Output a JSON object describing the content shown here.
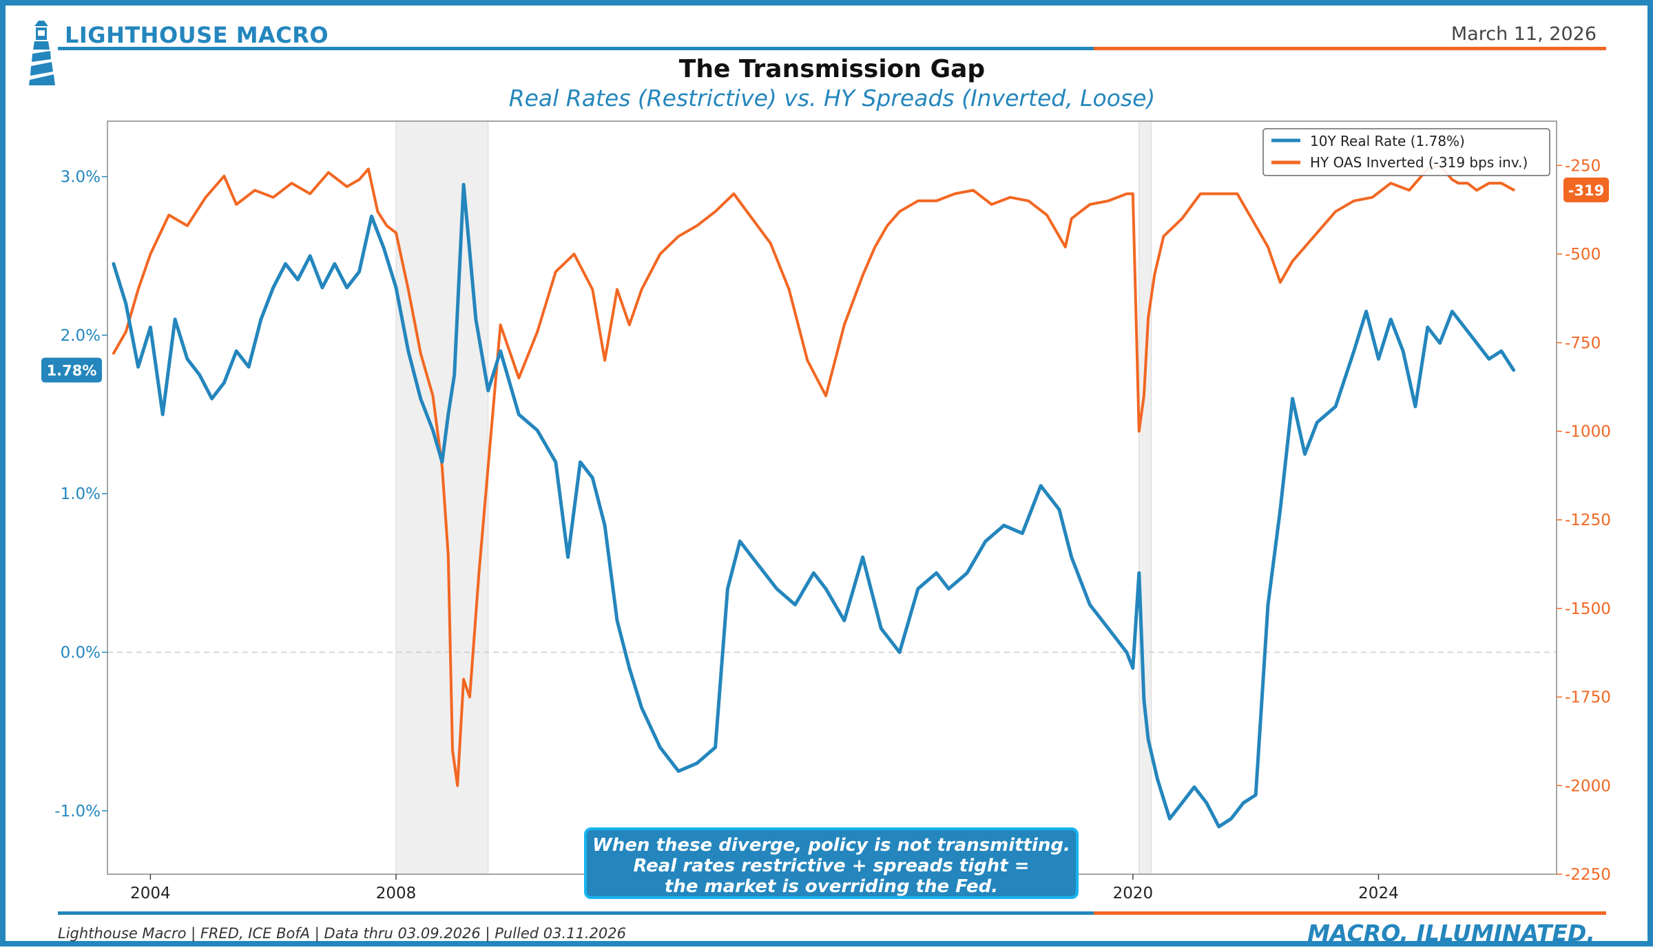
{
  "brand": "LIGHTHOUSE MACRO",
  "date": "March 11, 2026",
  "footer": {
    "source": "Lighthouse Macro | FRED, ICE BofA | Data thru 03.09.2026 | Pulled 03.11.2026",
    "tagline": "MACRO, ILLUMINATED."
  },
  "callout": [
    "When these diverge, policy is not transmitting.",
    "Real rates restrictive + spreads tight =",
    "the market is overriding the Fed."
  ],
  "colors": {
    "blue": "#2486bd",
    "orange": "#f26722",
    "shade": "#efefef",
    "border": "#2486bd"
  },
  "chart_data": {
    "type": "line",
    "title": "The Transmission Gap",
    "subtitle": "Real Rates (Restrictive) vs. HY Spreads (Inverted, Loose)",
    "x_range": [
      2003.3,
      2026.9
    ],
    "x_ticks": [
      2004,
      2008,
      2020,
      2024
    ],
    "x_tick_labels": [
      "2004",
      "2008",
      "2020",
      "2024"
    ],
    "recessions": [
      [
        2008.0,
        2009.5
      ],
      [
        2020.1,
        2020.3
      ]
    ],
    "left_axis": {
      "range": [
        -1.4,
        3.35
      ],
      "ticks": [
        -1.0,
        0.0,
        1.0,
        2.0,
        3.0
      ],
      "tick_labels": [
        "-1.0%",
        "0.0%",
        "1.0%",
        "2.0%",
        "3.0%"
      ],
      "current_label": "1.78%",
      "current_value": 1.78
    },
    "right_axis": {
      "range": [
        -2250,
        -125
      ],
      "ticks": [
        -250,
        -500,
        -750,
        -1000,
        -1250,
        -1500,
        -1750,
        -2000,
        -2250
      ],
      "tick_labels": [
        "-250",
        "-500",
        "-750",
        "-1000",
        "-1250",
        "-1500",
        "-1750",
        "-2000",
        "-2250"
      ],
      "current_label": "-319",
      "current_value": -319
    },
    "legend": {
      "position": "top-right"
    },
    "series": [
      {
        "name": "10Y Real Rate (1.78%)",
        "axis": "left",
        "color": "#2486bd",
        "x": [
          2003.4,
          2003.6,
          2003.8,
          2004.0,
          2004.2,
          2004.4,
          2004.6,
          2004.8,
          2005.0,
          2005.2,
          2005.4,
          2005.6,
          2005.8,
          2006.0,
          2006.2,
          2006.4,
          2006.6,
          2006.8,
          2007.0,
          2007.2,
          2007.4,
          2007.6,
          2007.8,
          2008.0,
          2008.2,
          2008.4,
          2008.6,
          2008.75,
          2008.85,
          2008.95,
          2009.1,
          2009.3,
          2009.5,
          2009.7,
          2010.0,
          2010.3,
          2010.6,
          2010.8,
          2011.0,
          2011.2,
          2011.4,
          2011.6,
          2011.8,
          2012.0,
          2012.3,
          2012.6,
          2012.9,
          2013.2,
          2013.4,
          2013.6,
          2013.9,
          2014.2,
          2014.5,
          2014.8,
          2015.0,
          2015.3,
          2015.6,
          2015.9,
          2016.2,
          2016.5,
          2016.8,
          2017.0,
          2017.3,
          2017.6,
          2017.9,
          2018.2,
          2018.5,
          2018.8,
          2019.0,
          2019.3,
          2019.6,
          2019.9,
          2020.0,
          2020.1,
          2020.18,
          2020.25,
          2020.4,
          2020.6,
          2020.8,
          2021.0,
          2021.2,
          2021.4,
          2021.6,
          2021.8,
          2022.0,
          2022.2,
          2022.4,
          2022.6,
          2022.8,
          2023.0,
          2023.3,
          2023.6,
          2023.8,
          2024.0,
          2024.2,
          2024.4,
          2024.6,
          2024.8,
          2025.0,
          2025.2,
          2025.4,
          2025.6,
          2025.8,
          2026.0,
          2026.2
        ],
        "values": [
          2.45,
          2.2,
          1.8,
          2.05,
          1.5,
          2.1,
          1.85,
          1.75,
          1.6,
          1.7,
          1.9,
          1.8,
          2.1,
          2.3,
          2.45,
          2.35,
          2.5,
          2.3,
          2.45,
          2.3,
          2.4,
          2.75,
          2.55,
          2.3,
          1.9,
          1.6,
          1.4,
          1.2,
          1.5,
          1.75,
          2.95,
          2.1,
          1.65,
          1.9,
          1.5,
          1.4,
          1.2,
          0.6,
          1.2,
          1.1,
          0.8,
          0.2,
          -0.1,
          -0.35,
          -0.6,
          -0.75,
          -0.7,
          -0.6,
          0.4,
          0.7,
          0.55,
          0.4,
          0.3,
          0.5,
          0.4,
          0.2,
          0.6,
          0.15,
          0.0,
          0.4,
          0.5,
          0.4,
          0.5,
          0.7,
          0.8,
          0.75,
          1.05,
          0.9,
          0.6,
          0.3,
          0.15,
          0.0,
          -0.1,
          0.5,
          -0.3,
          -0.55,
          -0.8,
          -1.05,
          -0.95,
          -0.85,
          -0.95,
          -1.1,
          -1.05,
          -0.95,
          -0.9,
          0.3,
          0.9,
          1.6,
          1.25,
          1.45,
          1.55,
          1.9,
          2.15,
          1.85,
          2.1,
          1.9,
          1.55,
          2.05,
          1.95,
          2.15,
          2.05,
          1.95,
          1.85,
          1.9,
          1.78
        ]
      },
      {
        "name": "HY OAS Inverted (-319 bps inv.)",
        "axis": "right",
        "color": "#f26722",
        "x": [
          2003.4,
          2003.6,
          2003.8,
          2004.0,
          2004.3,
          2004.6,
          2004.9,
          2005.2,
          2005.4,
          2005.7,
          2006.0,
          2006.3,
          2006.6,
          2006.9,
          2007.2,
          2007.4,
          2007.55,
          2007.7,
          2007.85,
          2008.0,
          2008.2,
          2008.4,
          2008.6,
          2008.75,
          2008.85,
          2008.92,
          2009.0,
          2009.1,
          2009.2,
          2009.35,
          2009.5,
          2009.7,
          2010.0,
          2010.3,
          2010.6,
          2010.9,
          2011.2,
          2011.4,
          2011.6,
          2011.8,
          2012.0,
          2012.3,
          2012.6,
          2012.9,
          2013.2,
          2013.5,
          2013.8,
          2014.1,
          2014.4,
          2014.7,
          2015.0,
          2015.3,
          2015.6,
          2015.8,
          2016.0,
          2016.2,
          2016.5,
          2016.8,
          2017.1,
          2017.4,
          2017.7,
          2018.0,
          2018.3,
          2018.6,
          2018.9,
          2019.0,
          2019.3,
          2019.6,
          2019.9,
          2020.0,
          2020.1,
          2020.18,
          2020.25,
          2020.35,
          2020.5,
          2020.8,
          2021.1,
          2021.4,
          2021.7,
          2022.0,
          2022.2,
          2022.4,
          2022.6,
          2022.8,
          2023.0,
          2023.3,
          2023.6,
          2023.9,
          2024.2,
          2024.5,
          2024.8,
          2025.0,
          2025.2,
          2025.3,
          2025.45,
          2025.6,
          2025.8,
          2026.0,
          2026.2
        ],
        "values": [
          -780,
          -720,
          -600,
          -500,
          -390,
          -420,
          -340,
          -280,
          -360,
          -320,
          -340,
          -300,
          -330,
          -270,
          -310,
          -290,
          -260,
          -380,
          -420,
          -440,
          -600,
          -780,
          -900,
          -1100,
          -1350,
          -1900,
          -2000,
          -1700,
          -1750,
          -1400,
          -1100,
          -700,
          -850,
          -720,
          -550,
          -500,
          -600,
          -800,
          -600,
          -700,
          -600,
          -500,
          -450,
          -420,
          -380,
          -330,
          -400,
          -470,
          -600,
          -800,
          -900,
          -700,
          -560,
          -480,
          -420,
          -380,
          -350,
          -350,
          -330,
          -320,
          -360,
          -340,
          -350,
          -390,
          -480,
          -400,
          -360,
          -350,
          -330,
          -330,
          -1000,
          -900,
          -680,
          -560,
          -450,
          -400,
          -330,
          -330,
          -330,
          -420,
          -480,
          -580,
          -520,
          -480,
          -440,
          -380,
          -350,
          -340,
          -300,
          -320,
          -260,
          -250,
          -290,
          -300,
          -300,
          -320,
          -300,
          -300,
          -319
        ]
      }
    ]
  }
}
